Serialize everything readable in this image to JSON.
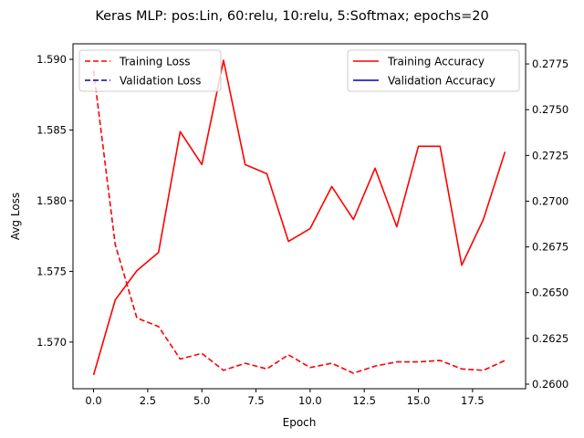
{
  "chart_data": {
    "type": "line",
    "title": "Keras MLP: pos:Lin, 60:relu, 10:relu, 5:Softmax; epochs=20",
    "xlabel": "Epoch",
    "ylabel_left": "Avg Loss",
    "ylabel_right": "",
    "x": [
      0,
      1,
      2,
      3,
      4,
      5,
      6,
      7,
      8,
      9,
      10,
      11,
      12,
      13,
      14,
      15,
      16,
      17,
      18,
      19
    ],
    "xlim": [
      -0.95,
      19.95
    ],
    "ylim_left": [
      1.5667,
      1.5911
    ],
    "ylim_right": [
      0.25975,
      0.2786
    ],
    "x_ticks": [
      0.0,
      2.5,
      5.0,
      7.5,
      10.0,
      12.5,
      15.0,
      17.5
    ],
    "x_tick_labels": [
      "0.0",
      "2.5",
      "5.0",
      "7.5",
      "10.0",
      "12.5",
      "15.0",
      "17.5"
    ],
    "y_left_ticks": [
      1.57,
      1.575,
      1.58,
      1.585,
      1.59
    ],
    "y_left_tick_labels": [
      "1.570",
      "1.575",
      "1.580",
      "1.585",
      "1.590"
    ],
    "y_right_ticks": [
      0.26,
      0.2625,
      0.265,
      0.2675,
      0.27,
      0.2725,
      0.275,
      0.2775
    ],
    "y_right_tick_labels": [
      "0.2600",
      "0.2625",
      "0.2650",
      "0.2675",
      "0.2700",
      "0.2725",
      "0.2750",
      "0.2775"
    ],
    "grid": false,
    "legend_left": {
      "placement": "upper-left",
      "entries": [
        {
          "label": "Training Loss",
          "color": "#ff0000",
          "style": "dashed"
        },
        {
          "label": "Validation Loss",
          "color": "#0000bf",
          "style": "dashed"
        }
      ]
    },
    "legend_right": {
      "placement": "upper-right",
      "entries": [
        {
          "label": "Training Accuracy",
          "color": "#ff0000",
          "style": "solid"
        },
        {
          "label": "Validation Accuracy",
          "color": "#0000bf",
          "style": "solid"
        }
      ]
    },
    "series": [
      {
        "name": "Training Loss",
        "axis": "left",
        "color": "#ff0000",
        "style": "dashed",
        "values": [
          1.5892,
          1.5769,
          1.5717,
          1.5711,
          1.5688,
          1.5692,
          1.568,
          1.5685,
          1.5681,
          1.5691,
          1.5682,
          1.5685,
          1.5678,
          1.5683,
          1.5686,
          1.5686,
          1.5687,
          1.5681,
          1.568,
          1.5687
        ]
      },
      {
        "name": "Training Accuracy",
        "axis": "right",
        "color": "#ff0000",
        "style": "solid",
        "values": [
          0.2605,
          0.2646,
          0.2662,
          0.2672,
          0.2738,
          0.272,
          0.2777,
          0.272,
          0.2715,
          0.2678,
          0.2685,
          0.2708,
          0.269,
          0.2718,
          0.2686,
          0.273,
          0.273,
          0.2665,
          0.269,
          0.2727
        ]
      }
    ]
  }
}
